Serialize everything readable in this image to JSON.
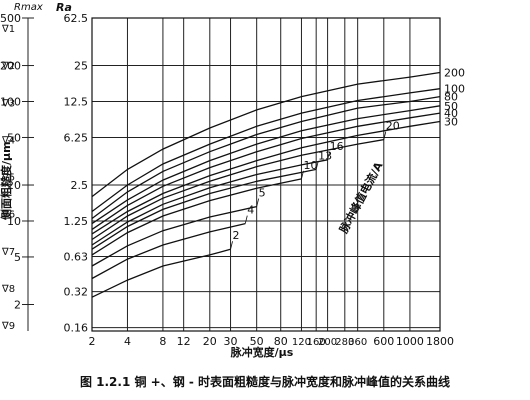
{
  "chart_data": {
    "type": "line",
    "title": "",
    "caption": "图 1.2.1 铜 +、钢 - 时表面粗糙度与脉冲宽度和脉冲峰值的关系曲线",
    "xlabel": "脉冲宽度/μs",
    "ylabel_rmax": "侧面粗糙度/μm",
    "ylabel_rmax_head": "Rmax",
    "ylabel_ra_head": "Ra",
    "x_scale": "log",
    "y_scale": "log",
    "xlim": [
      2,
      1800
    ],
    "ylim_rmax": [
      1.2,
      500
    ],
    "x_ticks": [
      "2",
      "4",
      "8",
      "12",
      "20",
      "30",
      "50",
      "80",
      "120",
      "160",
      "200",
      "280",
      "360",
      "600",
      "1000",
      "1800"
    ],
    "rmax_ticks": [
      "500",
      "200",
      "100",
      "50",
      "20",
      "10",
      "5",
      "2"
    ],
    "ra_ticks": [
      "62.5",
      "25",
      "12.5",
      "6.25",
      "2.5",
      "1.25",
      "0.63",
      "0.32",
      "0.16"
    ],
    "grade_marks": [
      "∇1",
      "∇2",
      "∇3",
      "∇4",
      "∇5",
      "∇6",
      "∇7",
      "∇8",
      "∇9"
    ],
    "legend_title": "脉冲峰值电流/A",
    "series": [
      {
        "name": "200",
        "x": [
          2,
          4,
          8,
          20,
          50,
          120,
          360,
          1000,
          1800
        ],
        "y": [
          16,
          27,
          40,
          60,
          85,
          110,
          140,
          160,
          175
        ]
      },
      {
        "name": "100",
        "x": [
          2,
          4,
          8,
          20,
          50,
          120,
          360,
          1000,
          1800
        ],
        "y": [
          12,
          20,
          30,
          44,
          62,
          80,
          102,
          118,
          128
        ]
      },
      {
        "name": "80",
        "x": [
          2,
          4,
          8,
          20,
          50,
          120,
          360,
          1000,
          1800
        ],
        "y": [
          10.5,
          17.5,
          26,
          38,
          53,
          68,
          88,
          100,
          110
        ]
      },
      {
        "name": "50",
        "x": [
          2,
          4,
          8,
          20,
          50,
          120,
          360,
          1000,
          1800
        ],
        "y": [
          9.5,
          15,
          22,
          32,
          44,
          57,
          72,
          84,
          92
        ]
      },
      {
        "name": "40",
        "x": [
          2,
          4,
          8,
          20,
          50,
          120,
          360,
          1000,
          1800
        ],
        "y": [
          8.5,
          13.5,
          19.5,
          28,
          38,
          49,
          62,
          73,
          80
        ]
      },
      {
        "name": "30",
        "x": [
          2,
          4,
          8,
          20,
          50,
          120,
          360,
          1000,
          1800
        ],
        "y": [
          7.8,
          12,
          17,
          24,
          32,
          41,
          52,
          62,
          68
        ]
      },
      {
        "name": "20",
        "x": [
          2,
          4,
          8,
          20,
          50,
          120,
          360,
          600
        ],
        "y": [
          7,
          11,
          15.5,
          21.5,
          28.5,
          35.5,
          44,
          48
        ]
      },
      {
        "name": "16",
        "x": [
          2,
          4,
          8,
          20,
          50,
          120,
          200
        ],
        "y": [
          6.3,
          9.8,
          13.8,
          19,
          24.5,
          29.5,
          32.5
        ]
      },
      {
        "name": "13",
        "x": [
          2,
          4,
          8,
          20,
          50,
          120,
          160
        ],
        "y": [
          5.8,
          9,
          12.5,
          17,
          21.5,
          25.5,
          27
        ]
      },
      {
        "name": "10",
        "x": [
          2,
          4,
          8,
          20,
          50,
          120
        ],
        "y": [
          5.2,
          8,
          11,
          14.8,
          18.8,
          22.5
        ]
      },
      {
        "name": "5",
        "x": [
          2,
          4,
          8,
          20,
          50
        ],
        "y": [
          4.2,
          6.2,
          8.3,
          10.8,
          13.2
        ]
      },
      {
        "name": "4",
        "x": [
          2,
          4,
          8,
          20,
          40
        ],
        "y": [
          3.3,
          4.8,
          6.3,
          8.1,
          9.5
        ]
      },
      {
        "name": "2",
        "x": [
          2,
          4,
          8,
          20,
          30
        ],
        "y": [
          2.3,
          3.2,
          4.2,
          5.2,
          5.8
        ]
      }
    ]
  }
}
